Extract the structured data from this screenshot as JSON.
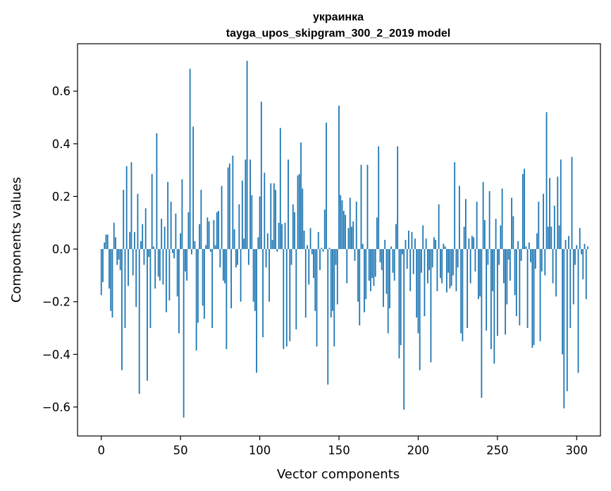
{
  "chart_data": {
    "type": "bar",
    "title_line1": "украинка",
    "title_line2": "tayga_upos_skipgram_300_2_2019 model",
    "xlabel": "Vector components",
    "ylabel": "Components values",
    "xlim": [
      -15,
      315
    ],
    "ylim": [
      -0.71,
      0.78
    ],
    "xticks": [
      0,
      50,
      100,
      150,
      200,
      250,
      300
    ],
    "xtick_labels": [
      "0",
      "50",
      "100",
      "150",
      "200",
      "250",
      "300"
    ],
    "yticks": [
      -0.6,
      -0.4,
      -0.2,
      0.0,
      0.2,
      0.4,
      0.6
    ],
    "ytick_labels": [
      "−0.6",
      "−0.4",
      "−0.2",
      "0.0",
      "0.2",
      "0.4",
      "0.6"
    ],
    "bar_color": "#1f77b4",
    "grid": false,
    "values": [
      -0.175,
      -0.125,
      0.025,
      0.055,
      0.055,
      -0.15,
      -0.235,
      -0.26,
      0.1,
      0.045,
      -0.06,
      -0.04,
      -0.08,
      -0.46,
      0.225,
      -0.3,
      0.315,
      -0.14,
      0.065,
      0.33,
      -0.1,
      0.065,
      -0.22,
      0.21,
      -0.55,
      0.03,
      0.095,
      -0.06,
      0.155,
      -0.5,
      -0.03,
      -0.3,
      0.285,
      0.01,
      -0.15,
      0.44,
      -0.105,
      -0.12,
      0.115,
      -0.135,
      0.085,
      -0.24,
      0.255,
      -0.195,
      0.18,
      -0.015,
      -0.035,
      0.135,
      -0.18,
      -0.32,
      0.06,
      0.265,
      -0.64,
      -0.085,
      -0.12,
      0.14,
      0.685,
      -0.02,
      0.465,
      0.03,
      -0.385,
      -0.28,
      0.095,
      0.225,
      -0.215,
      -0.265,
      0.015,
      0.12,
      0.105,
      -0.01,
      -0.3,
      0.11,
      0.015,
      0.14,
      0.145,
      -0.07,
      0.24,
      -0.12,
      -0.13,
      -0.38,
      0.31,
      0.325,
      -0.225,
      0.355,
      0.075,
      -0.07,
      -0.06,
      0.17,
      -0.2,
      0.26,
      0.04,
      0.34,
      0.715,
      -0.06,
      0.34,
      0.205,
      -0.2,
      -0.235,
      -0.47,
      0.045,
      0.2,
      0.56,
      -0.335,
      0.29,
      -0.07,
      0.06,
      -0.2,
      0.25,
      0.035,
      0.25,
      0.225,
      -0.01,
      0.1,
      0.46,
      0.095,
      -0.38,
      0.1,
      -0.37,
      0.34,
      -0.35,
      -0.06,
      0.17,
      0.14,
      -0.305,
      0.28,
      0.285,
      0.405,
      0.23,
      0.07,
      -0.26,
      0.015,
      -0.135,
      0.08,
      -0.02,
      -0.11,
      -0.235,
      -0.37,
      0.065,
      -0.08,
      0.005,
      -0.01,
      0.15,
      0.48,
      -0.515,
      0.005,
      -0.26,
      -0.235,
      -0.37,
      -0.06,
      -0.21,
      0.545,
      0.205,
      0.185,
      0.145,
      0.13,
      -0.13,
      0.08,
      0.195,
      0.085,
      0.105,
      -0.045,
      0.18,
      -0.2,
      -0.29,
      0.32,
      0.02,
      -0.24,
      -0.19,
      0.32,
      -0.12,
      -0.16,
      -0.11,
      -0.14,
      -0.105,
      0.12,
      0.39,
      -0.05,
      -0.08,
      -0.22,
      0.035,
      -0.17,
      -0.32,
      -0.225,
      0.01,
      -0.09,
      -0.12,
      0.095,
      0.39,
      -0.415,
      -0.365,
      -0.02,
      -0.61,
      0.035,
      -0.075,
      0.07,
      -0.16,
      0.065,
      -0.095,
      0.04,
      -0.26,
      -0.32,
      -0.46,
      -0.09,
      0.09,
      -0.255,
      0.04,
      -0.13,
      -0.08,
      -0.43,
      -0.07,
      0.045,
      0.035,
      -0.16,
      0.17,
      -0.11,
      -0.13,
      0.02,
      0.01,
      -0.165,
      -0.09,
      -0.15,
      -0.14,
      -0.1,
      0.33,
      -0.16,
      -0.07,
      0.24,
      -0.32,
      -0.35,
      0.085,
      0.19,
      -0.3,
      0.04,
      -0.13,
      0.05,
      0.045,
      -0.085,
      0.18,
      -0.19,
      -0.18,
      -0.565,
      0.255,
      0.11,
      -0.31,
      -0.06,
      0.22,
      -0.38,
      -0.16,
      -0.435,
      0.115,
      -0.33,
      -0.06,
      0.09,
      0.23,
      -0.13,
      -0.325,
      -0.21,
      -0.04,
      -0.12,
      0.195,
      0.125,
      -0.175,
      -0.255,
      0.03,
      -0.29,
      -0.045,
      0.285,
      0.305,
      0.01,
      -0.3,
      0.025,
      -0.05,
      -0.375,
      -0.365,
      -0.075,
      0.06,
      0.18,
      -0.35,
      -0.085,
      0.21,
      -0.1,
      0.52,
      0.085,
      0.27,
      0.085,
      -0.13,
      0.165,
      -0.18,
      0.275,
      0.09,
      0.34,
      -0.4,
      -0.605,
      0.035,
      -0.54,
      0.05,
      -0.3,
      0.35,
      -0.21,
      -0.06,
      0.015,
      -0.47,
      0.08,
      -0.02,
      -0.115,
      0.02,
      -0.19,
      0.01
    ]
  }
}
